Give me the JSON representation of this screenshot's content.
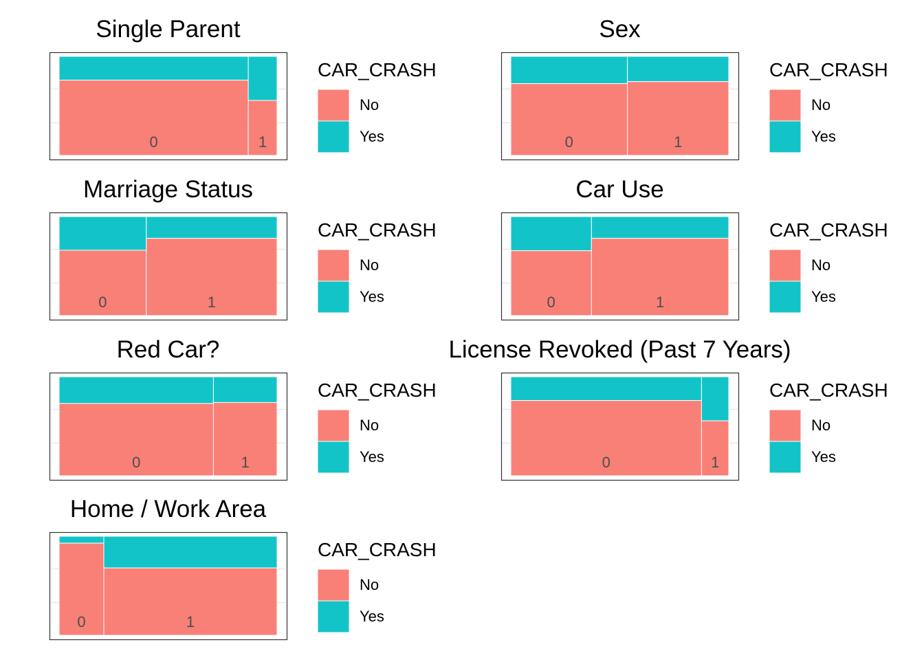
{
  "legend": {
    "title": "CAR_CRASH",
    "levels": [
      "No",
      "Yes"
    ],
    "colors": [
      "#F8766D",
      "#00BFC4"
    ]
  },
  "chart_data": [
    {
      "type": "mosaic",
      "title": "Single Parent",
      "categories": [
        "0",
        "1"
      ],
      "widths": [
        0.868,
        0.132
      ],
      "series": [
        {
          "name": "No",
          "values": [
            0.76,
            0.555
          ]
        },
        {
          "name": "Yes",
          "values": [
            0.24,
            0.445
          ]
        }
      ]
    },
    {
      "type": "mosaic",
      "title": "Sex",
      "categories": [
        "0",
        "1"
      ],
      "widths": [
        0.535,
        0.465
      ],
      "series": [
        {
          "name": "No",
          "values": [
            0.725,
            0.745
          ]
        },
        {
          "name": "Yes",
          "values": [
            0.275,
            0.255
          ]
        }
      ]
    },
    {
      "type": "mosaic",
      "title": "Marriage Status",
      "categories": [
        "0",
        "1"
      ],
      "widths": [
        0.4,
        0.6
      ],
      "series": [
        {
          "name": "No",
          "values": [
            0.66,
            0.78
          ]
        },
        {
          "name": "Yes",
          "values": [
            0.34,
            0.22
          ]
        }
      ]
    },
    {
      "type": "mosaic",
      "title": "Car Use",
      "categories": [
        "0",
        "1"
      ],
      "widths": [
        0.37,
        0.63
      ],
      "series": [
        {
          "name": "No",
          "values": [
            0.655,
            0.78
          ]
        },
        {
          "name": "Yes",
          "values": [
            0.345,
            0.22
          ]
        }
      ]
    },
    {
      "type": "mosaic",
      "title": "Red Car?",
      "categories": [
        "0",
        "1"
      ],
      "widths": [
        0.708,
        0.292
      ],
      "series": [
        {
          "name": "No",
          "values": [
            0.73,
            0.74
          ]
        },
        {
          "name": "Yes",
          "values": [
            0.27,
            0.26
          ]
        }
      ]
    },
    {
      "type": "mosaic",
      "title": "License Revoked (Past 7 Years)",
      "categories": [
        "0",
        "1"
      ],
      "widths": [
        0.875,
        0.125
      ],
      "series": [
        {
          "name": "No",
          "values": [
            0.76,
            0.555
          ]
        },
        {
          "name": "Yes",
          "values": [
            0.24,
            0.445
          ]
        }
      ]
    },
    {
      "type": "mosaic",
      "title": "Home / Work Area",
      "categories": [
        "0",
        "1"
      ],
      "widths": [
        0.205,
        0.795
      ],
      "series": [
        {
          "name": "No",
          "values": [
            0.93,
            0.68
          ]
        },
        {
          "name": "Yes",
          "values": [
            0.07,
            0.32
          ]
        }
      ]
    }
  ]
}
